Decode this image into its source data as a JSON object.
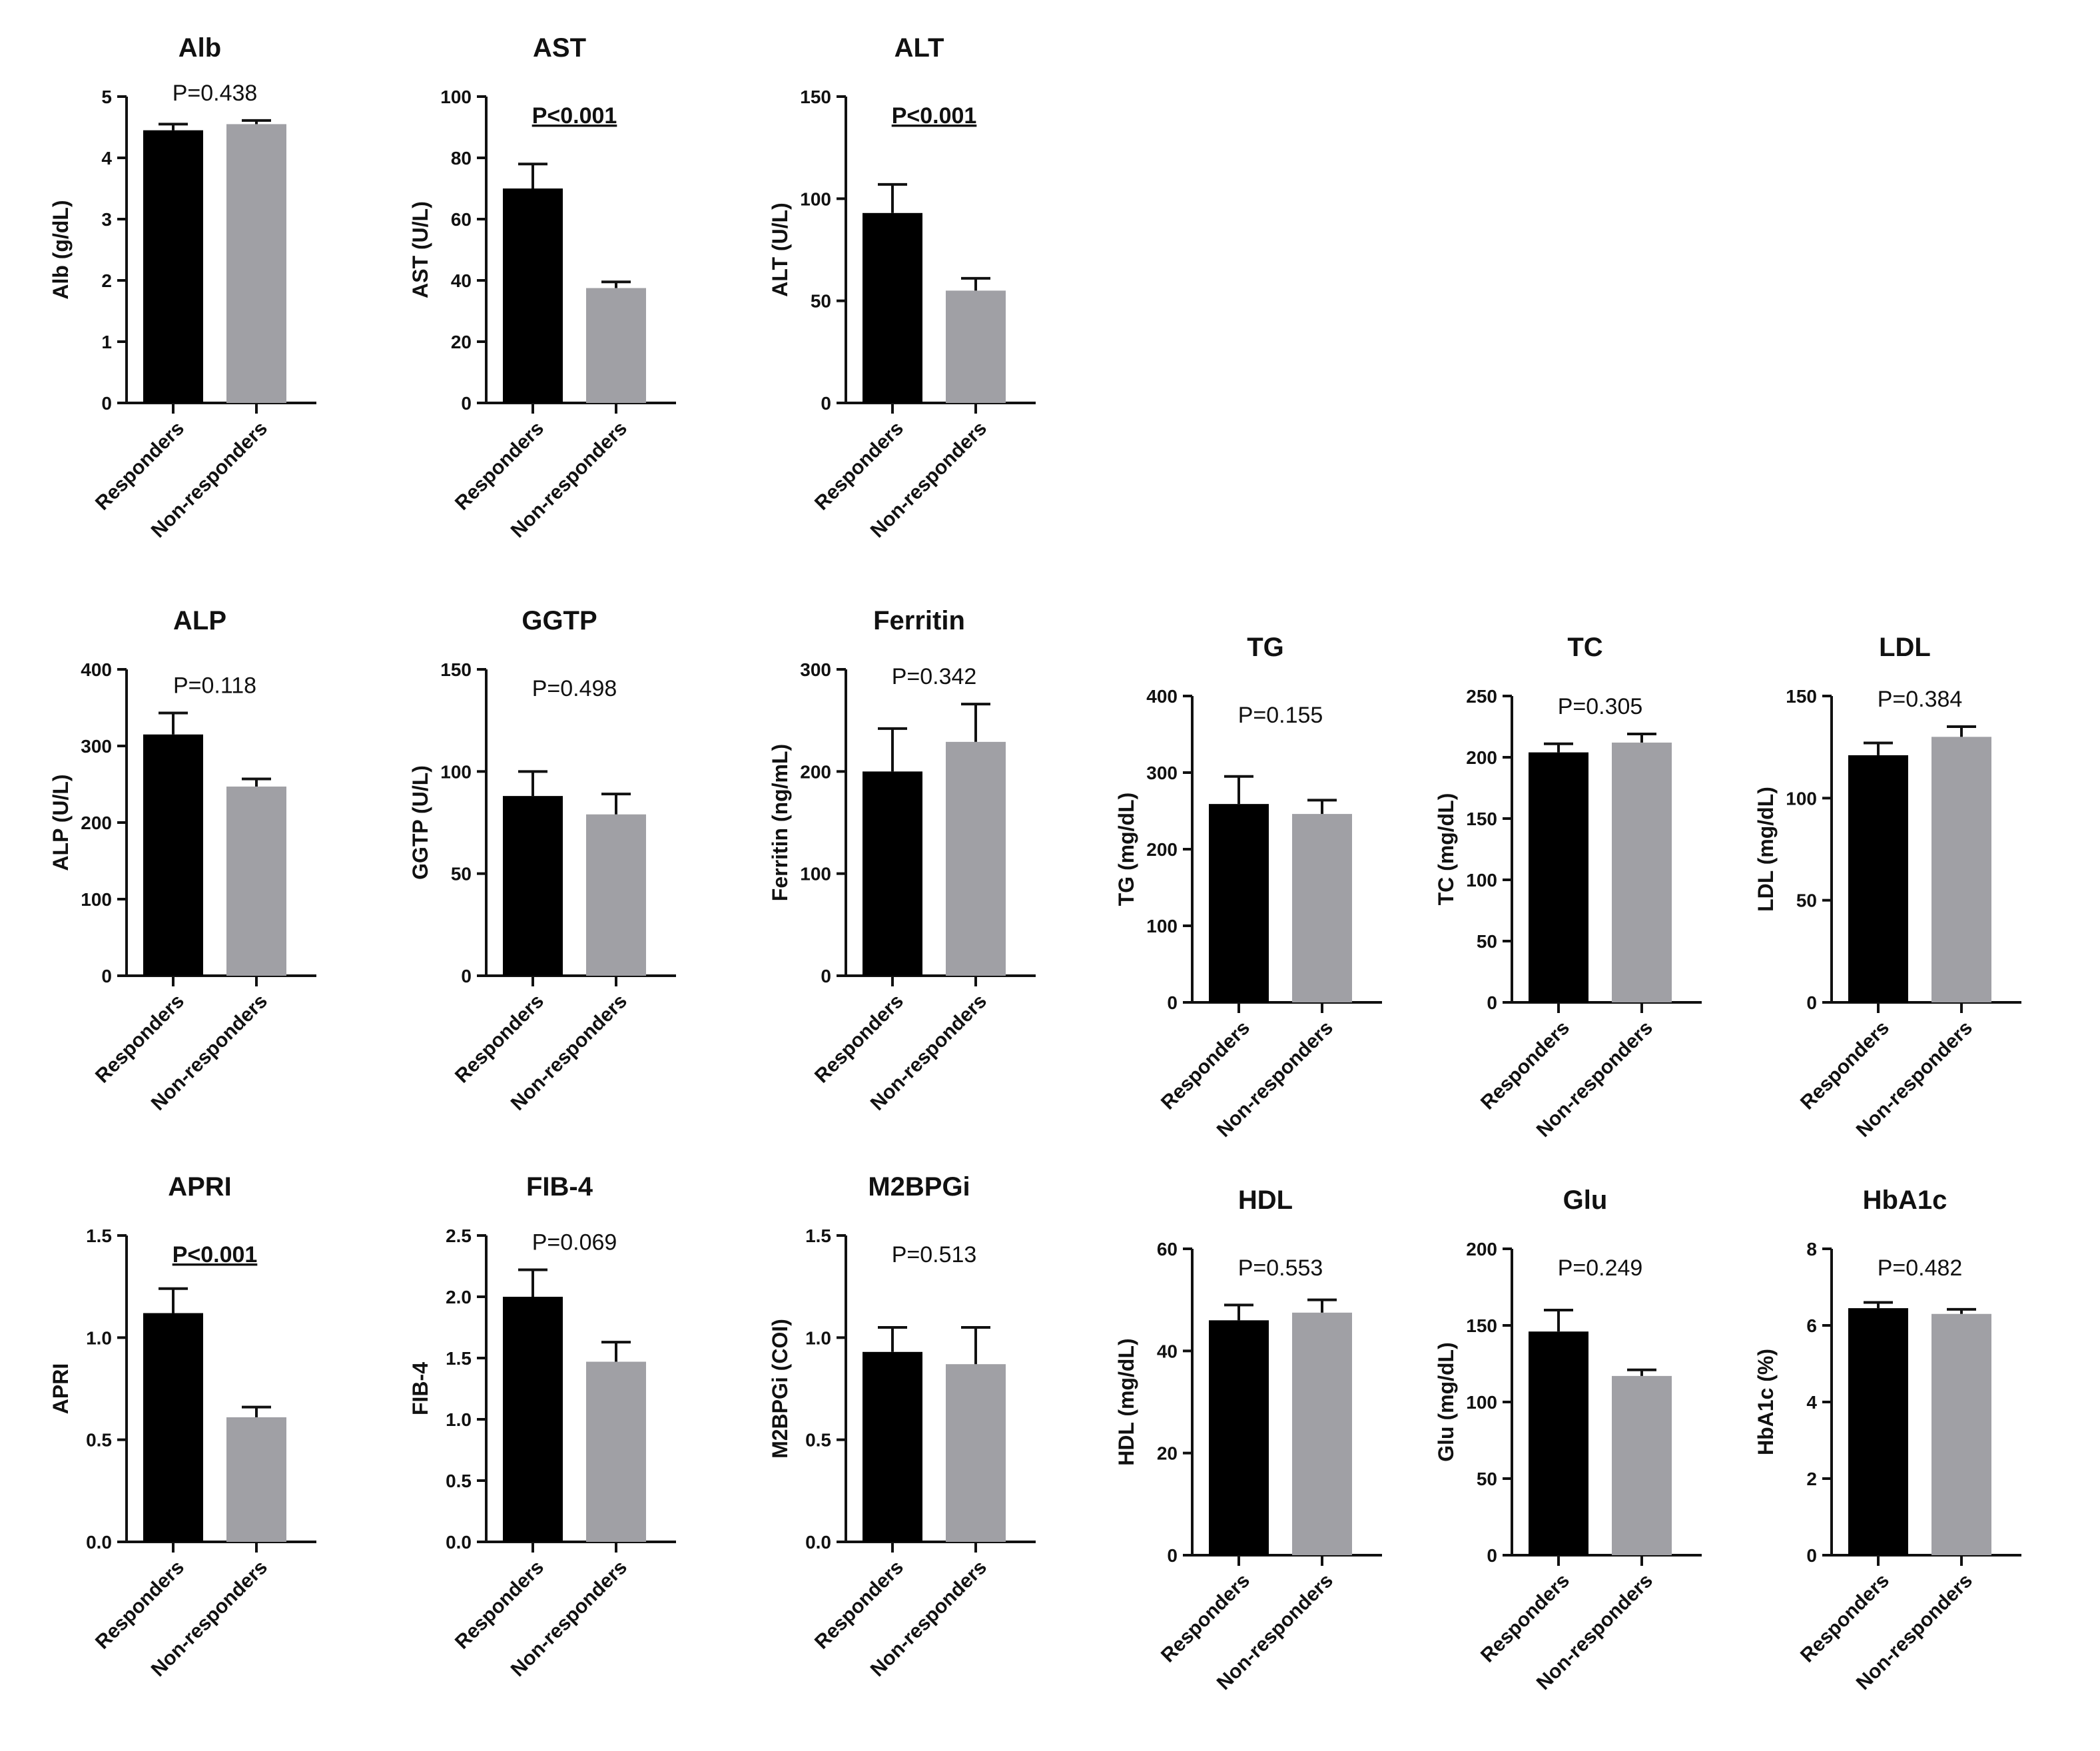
{
  "figure": {
    "group_labels": [
      "Responders",
      "Non-responders"
    ],
    "colors": {
      "responders": "#000000",
      "non_responders": "#a0a0a5",
      "axis": "#111111"
    }
  },
  "chart_data": [
    {
      "type": "bar",
      "title": "Alb",
      "ylabel": "Alb (g/dL)",
      "ylim": [
        0,
        5
      ],
      "yticks": [
        "0",
        "1",
        "2",
        "3",
        "4",
        "5"
      ],
      "categories": [
        "Responders",
        "Non-responders"
      ],
      "values": [
        4.45,
        4.55
      ],
      "errors": [
        0.1,
        0.06
      ],
      "annotation": "P=0.438",
      "significant": false
    },
    {
      "type": "bar",
      "title": "AST",
      "ylabel": "AST (U/L)",
      "ylim": [
        0,
        100
      ],
      "yticks": [
        "0",
        "20",
        "40",
        "60",
        "80",
        "100"
      ],
      "categories": [
        "Responders",
        "Non-responders"
      ],
      "values": [
        70,
        37.5
      ],
      "errors": [
        8,
        2
      ],
      "annotation": "P<0.001",
      "significant": true
    },
    {
      "type": "bar",
      "title": "ALT",
      "ylabel": "ALT (U/L)",
      "ylim": [
        0,
        150
      ],
      "yticks": [
        "0",
        "50",
        "100",
        "150"
      ],
      "categories": [
        "Responders",
        "Non-responders"
      ],
      "values": [
        93,
        55
      ],
      "errors": [
        14,
        6
      ],
      "annotation": "P<0.001",
      "significant": true
    },
    {
      "type": "bar",
      "title": "ALP",
      "ylabel": "ALP (U/L)",
      "ylim": [
        0,
        400
      ],
      "yticks": [
        "0",
        "100",
        "200",
        "300",
        "400"
      ],
      "categories": [
        "Responders",
        "Non-responders"
      ],
      "values": [
        315,
        247
      ],
      "errors": [
        28,
        10
      ],
      "annotation": "P=0.118",
      "significant": false
    },
    {
      "type": "bar",
      "title": "GGTP",
      "ylabel": "GGTP (U/L)",
      "ylim": [
        0,
        150
      ],
      "yticks": [
        "0",
        "50",
        "100",
        "150"
      ],
      "categories": [
        "Responders",
        "Non-responders"
      ],
      "values": [
        88,
        79
      ],
      "errors": [
        12,
        10
      ],
      "annotation": "P=0.498",
      "significant": false
    },
    {
      "type": "bar",
      "title": "Ferritin",
      "ylabel": "Ferritin (ng/mL)",
      "ylim": [
        0,
        300
      ],
      "yticks": [
        "0",
        "100",
        "200",
        "300"
      ],
      "categories": [
        "Responders",
        "Non-responders"
      ],
      "values": [
        200,
        229
      ],
      "errors": [
        42,
        37
      ],
      "annotation": "P=0.342",
      "significant": false
    },
    {
      "type": "bar",
      "title": "TG",
      "ylabel": "TG (mg/dL)",
      "ylim": [
        0,
        400
      ],
      "yticks": [
        "0",
        "100",
        "200",
        "300",
        "400"
      ],
      "categories": [
        "Responders",
        "Non-responders"
      ],
      "values": [
        259,
        246
      ],
      "errors": [
        36,
        18
      ],
      "annotation": "P=0.155",
      "significant": false
    },
    {
      "type": "bar",
      "title": "TC",
      "ylabel": "TC (mg/dL)",
      "ylim": [
        0,
        250
      ],
      "yticks": [
        "0",
        "50",
        "100",
        "150",
        "200",
        "250"
      ],
      "categories": [
        "Responders",
        "Non-responders"
      ],
      "values": [
        204,
        212
      ],
      "errors": [
        7,
        7
      ],
      "annotation": "P=0.305",
      "significant": false
    },
    {
      "type": "bar",
      "title": "LDL",
      "ylabel": "LDL (mg/dL)",
      "ylim": [
        0,
        150
      ],
      "yticks": [
        "0",
        "50",
        "100",
        "150"
      ],
      "categories": [
        "Responders",
        "Non-responders"
      ],
      "values": [
        121,
        130
      ],
      "errors": [
        6,
        5
      ],
      "annotation": "P=0.384",
      "significant": false
    },
    {
      "type": "bar",
      "title": "APRI",
      "ylabel": "APRI",
      "ylim": [
        0,
        1.5
      ],
      "yticks": [
        "0.0",
        "0.5",
        "1.0",
        "1.5"
      ],
      "categories": [
        "Responders",
        "Non-responders"
      ],
      "values": [
        1.12,
        0.61
      ],
      "errors": [
        0.12,
        0.05
      ],
      "annotation": "P<0.001",
      "significant": true
    },
    {
      "type": "bar",
      "title": "FIB-4",
      "ylabel": "FIB-4",
      "ylim": [
        0,
        2.5
      ],
      "yticks": [
        "0.0",
        "0.5",
        "1.0",
        "1.5",
        "2.0",
        "2.5"
      ],
      "categories": [
        "Responders",
        "Non-responders"
      ],
      "values": [
        2.0,
        1.47
      ],
      "errors": [
        0.22,
        0.16
      ],
      "annotation": "P=0.069",
      "significant": false
    },
    {
      "type": "bar",
      "title": "M2BPGi",
      "ylabel": "M2BPGi (COI)",
      "ylim": [
        0,
        1.5
      ],
      "yticks": [
        "0.0",
        "0.5",
        "1.0",
        "1.5"
      ],
      "categories": [
        "Responders",
        "Non-responders"
      ],
      "values": [
        0.93,
        0.87
      ],
      "errors": [
        0.12,
        0.18
      ],
      "annotation": "P=0.513",
      "significant": false
    },
    {
      "type": "bar",
      "title": "HDL",
      "ylabel": "HDL (mg/dL)",
      "ylim": [
        0,
        60
      ],
      "yticks": [
        "0",
        "20",
        "40",
        "60"
      ],
      "categories": [
        "Responders",
        "Non-responders"
      ],
      "values": [
        46,
        47.5
      ],
      "errors": [
        3,
        2.5
      ],
      "annotation": "P=0.553",
      "significant": false
    },
    {
      "type": "bar",
      "title": "Glu",
      "ylabel": "Glu (mg/dL)",
      "ylim": [
        0,
        200
      ],
      "yticks": [
        "0",
        "50",
        "100",
        "150",
        "200"
      ],
      "categories": [
        "Responders",
        "Non-responders"
      ],
      "values": [
        146,
        117
      ],
      "errors": [
        14,
        4
      ],
      "annotation": "P=0.249",
      "significant": false
    },
    {
      "type": "bar",
      "title": "HbA1c",
      "ylabel": "HbA1c (%)",
      "ylim": [
        0,
        8
      ],
      "yticks": [
        "0",
        "2",
        "4",
        "6",
        "8"
      ],
      "categories": [
        "Responders",
        "Non-responders"
      ],
      "values": [
        6.45,
        6.3
      ],
      "errors": [
        0.15,
        0.12
      ],
      "annotation": "P=0.482",
      "significant": false
    }
  ]
}
